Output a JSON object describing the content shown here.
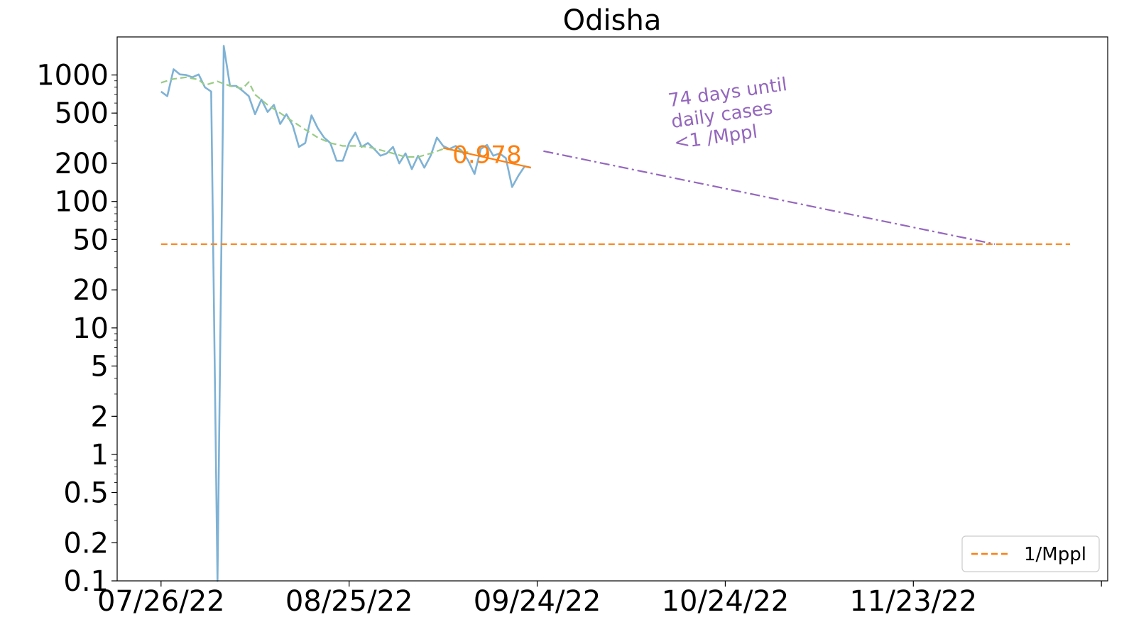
{
  "chart_data": {
    "type": "line",
    "title": "Odisha",
    "xlabel": "",
    "ylabel": "",
    "yscale": "symlog",
    "ylim": [
      0.1,
      2000
    ],
    "xlim": [
      "2022-07-19",
      "2022-12-24"
    ],
    "grid": false,
    "legend": {
      "placement": "bottom-right",
      "entries": [
        {
          "label": "1/Mppl",
          "color": "#ff7f0e",
          "style": "dashed"
        }
      ]
    },
    "x_ticks": [
      {
        "date": "2022-07-26",
        "label": "07/26/22"
      },
      {
        "date": "2022-08-25",
        "label": "08/25/22"
      },
      {
        "date": "2022-09-24",
        "label": "09/24/22"
      },
      {
        "date": "2022-10-24",
        "label": "10/24/22"
      },
      {
        "date": "2022-11-23",
        "label": "11/23/22"
      },
      {
        "date": "2022-12-23",
        "label": ""
      }
    ],
    "y_ticks": [
      {
        "value": 0.1,
        "label": "0.1"
      },
      {
        "value": 0.2,
        "label": "0.2"
      },
      {
        "value": 0.5,
        "label": "0.5"
      },
      {
        "value": 1,
        "label": "1"
      },
      {
        "value": 2,
        "label": "2"
      },
      {
        "value": 5,
        "label": "5"
      },
      {
        "value": 10,
        "label": "10"
      },
      {
        "value": 20,
        "label": "20"
      },
      {
        "value": 50,
        "label": "50"
      },
      {
        "value": 100,
        "label": "100"
      },
      {
        "value": 200,
        "label": "200"
      },
      {
        "value": 500,
        "label": "500"
      },
      {
        "value": 1000,
        "label": "1000"
      }
    ],
    "series": [
      {
        "color": "#7fb2d5",
        "style": "solid",
        "x": [
          "2022-07-26",
          "2022-07-27",
          "2022-07-28",
          "2022-07-29",
          "2022-07-30",
          "2022-07-31",
          "2022-08-01",
          "2022-08-02",
          "2022-08-03",
          "2022-08-04",
          "2022-08-04",
          "2022-08-05",
          "2022-08-06",
          "2022-08-07",
          "2022-08-08",
          "2022-08-09",
          "2022-08-10",
          "2022-08-11",
          "2022-08-12",
          "2022-08-13",
          "2022-08-14",
          "2022-08-15",
          "2022-08-16",
          "2022-08-17",
          "2022-08-18",
          "2022-08-19",
          "2022-08-20",
          "2022-08-21",
          "2022-08-22",
          "2022-08-23",
          "2022-08-24",
          "2022-08-25",
          "2022-08-26",
          "2022-08-27",
          "2022-08-28",
          "2022-08-29",
          "2022-08-30",
          "2022-08-31",
          "2022-09-01",
          "2022-09-02",
          "2022-09-03",
          "2022-09-04",
          "2022-09-05",
          "2022-09-06",
          "2022-09-07",
          "2022-09-08",
          "2022-09-09",
          "2022-09-10",
          "2022-09-11",
          "2022-09-12",
          "2022-09-13",
          "2022-09-14",
          "2022-09-15",
          "2022-09-16",
          "2022-09-17",
          "2022-09-18",
          "2022-09-19",
          "2022-09-20",
          "2022-09-21",
          "2022-09-22",
          "2022-09-23"
        ],
        "y": [
          740,
          680,
          1110,
          1010,
          1000,
          960,
          1010,
          800,
          740,
          0.1,
          0.1,
          1700,
          820,
          820,
          750,
          680,
          490,
          640,
          510,
          580,
          410,
          490,
          400,
          270,
          290,
          480,
          380,
          320,
          290,
          210,
          210,
          290,
          350,
          270,
          290,
          260,
          230,
          240,
          270,
          200,
          240,
          180,
          230,
          185,
          230,
          320,
          275,
          260,
          275,
          250,
          210,
          165,
          260,
          280,
          230,
          240,
          220,
          130,
          160,
          190,
          185
        ]
      },
      {
        "color": "#98cc85",
        "style": "dashed",
        "x": [
          "2022-07-26",
          "2022-07-28",
          "2022-07-30",
          "2022-08-01",
          "2022-08-02",
          "2022-08-04",
          "2022-08-06",
          "2022-08-08",
          "2022-08-09",
          "2022-08-10",
          "2022-08-12",
          "2022-08-14",
          "2022-08-16",
          "2022-08-18",
          "2022-08-20",
          "2022-08-22",
          "2022-08-24",
          "2022-08-26",
          "2022-08-28",
          "2022-08-30",
          "2022-09-01",
          "2022-09-03",
          "2022-09-05",
          "2022-09-07",
          "2022-09-09",
          "2022-09-11",
          "2022-09-13"
        ],
        "y": [
          870,
          930,
          960,
          920,
          830,
          890,
          820,
          780,
          880,
          700,
          580,
          500,
          430,
          370,
          320,
          290,
          275,
          275,
          270,
          255,
          240,
          225,
          225,
          240,
          260,
          255,
          245
        ]
      },
      {
        "color": "#ff7f0e",
        "style": "solid",
        "x": [
          "2022-09-09",
          "2022-09-23"
        ],
        "y": [
          265,
          185
        ]
      },
      {
        "color": "#9467bd",
        "style": "dashdot",
        "x": [
          "2022-09-25",
          "2022-12-06"
        ],
        "y": [
          250,
          46
        ]
      },
      {
        "name": "1/Mppl",
        "color": "#ff7f0e",
        "style": "dashed",
        "x": [
          "2022-07-26",
          "2022-12-18"
        ],
        "y": [
          46,
          46
        ]
      }
    ],
    "annotations": [
      {
        "text": "0.978",
        "color": "#ff7f0e",
        "x": "2022-09-16",
        "y": 235
      },
      {
        "text": "74 days until daily cases <1 /Mppl",
        "lines": [
          "74 days until",
          "daily cases",
          "<1 /Mppl"
        ],
        "color": "#9467bd",
        "x": "2022-10-16",
        "y": 260,
        "rotation_deg": -8
      }
    ]
  }
}
